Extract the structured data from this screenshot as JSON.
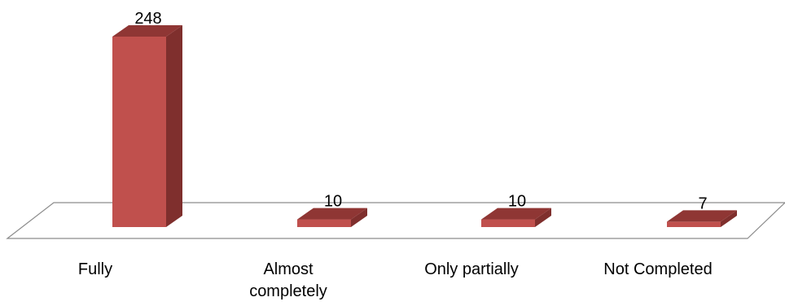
{
  "chart_data": {
    "type": "bar",
    "categories": [
      [
        "Fully"
      ],
      [
        "Almost",
        "completely"
      ],
      [
        "Only partially"
      ],
      [
        "Not Completed"
      ]
    ],
    "values": [
      248,
      10,
      10,
      7
    ],
    "data_labels": [
      "248",
      "10",
      "10",
      "7"
    ],
    "title": "",
    "xlabel": "",
    "ylabel": "",
    "ylim": [
      0,
      248
    ],
    "grid": false,
    "legend": "none",
    "style": "3d-column",
    "colors": {
      "front": "#c0504d",
      "side": "#7f2f2d",
      "top": "#8f3634",
      "floor_stroke": "#8c8c8c"
    }
  }
}
